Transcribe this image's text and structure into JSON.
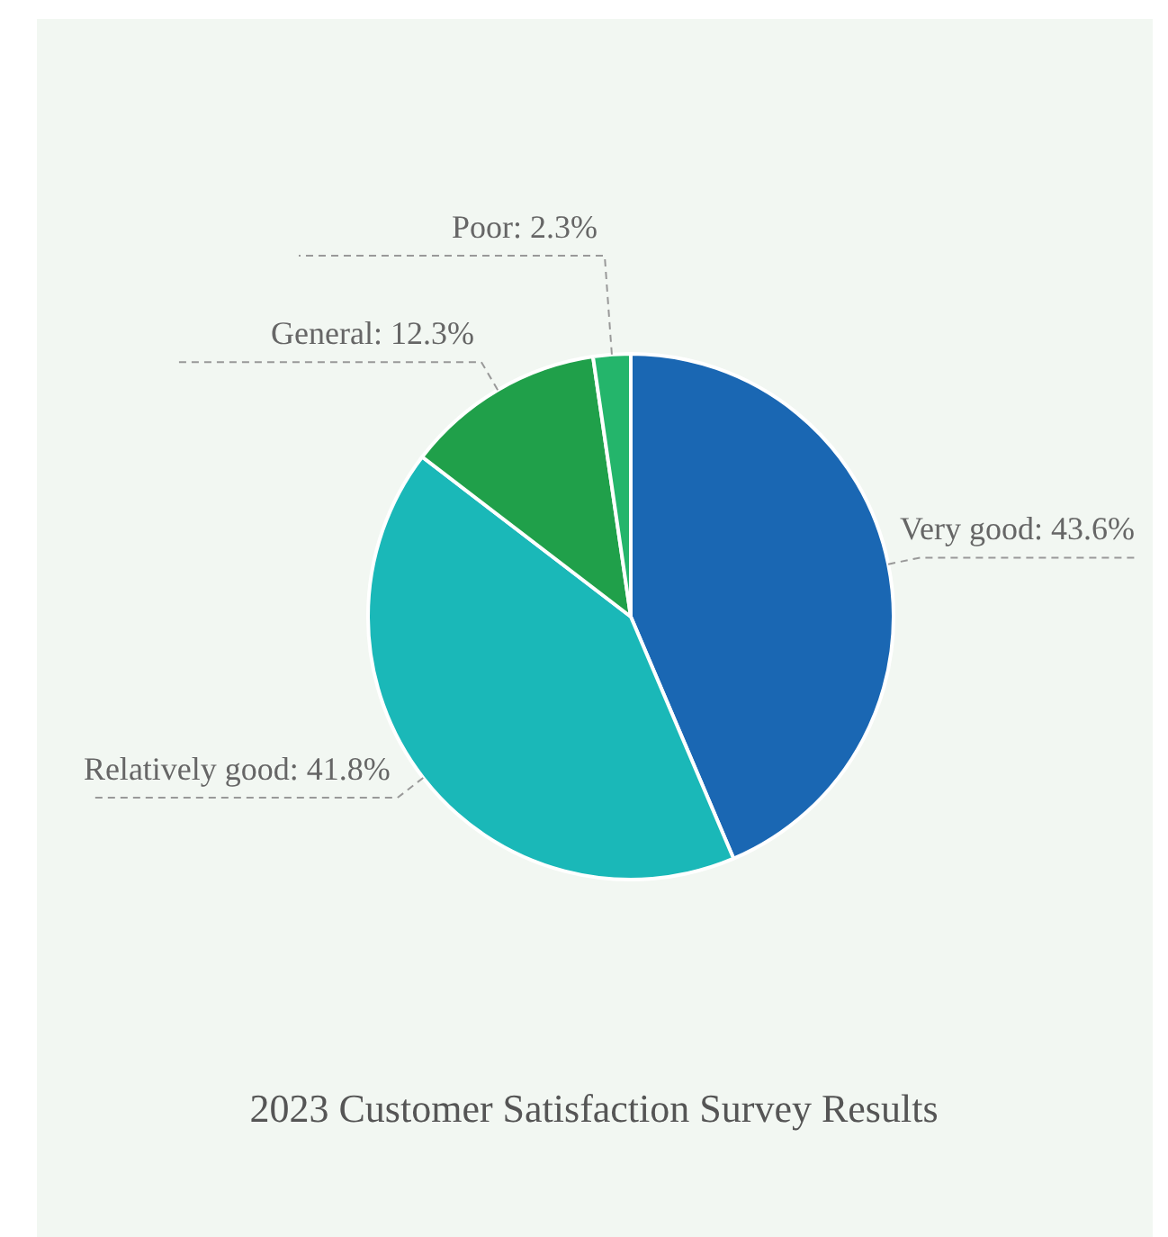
{
  "chart_data": {
    "type": "pie",
    "title": "2023 Customer Satisfaction Survey Results",
    "categories": [
      "Very good",
      "Relatively good",
      "General",
      "Poor"
    ],
    "values": [
      43.6,
      41.8,
      12.3,
      2.3
    ],
    "colors": [
      "#1a67b3",
      "#1ab8b8",
      "#20a04a",
      "#24b56b"
    ],
    "value_labels": [
      "43.6%",
      "41.8%",
      "12.3%",
      "2.3%"
    ]
  }
}
